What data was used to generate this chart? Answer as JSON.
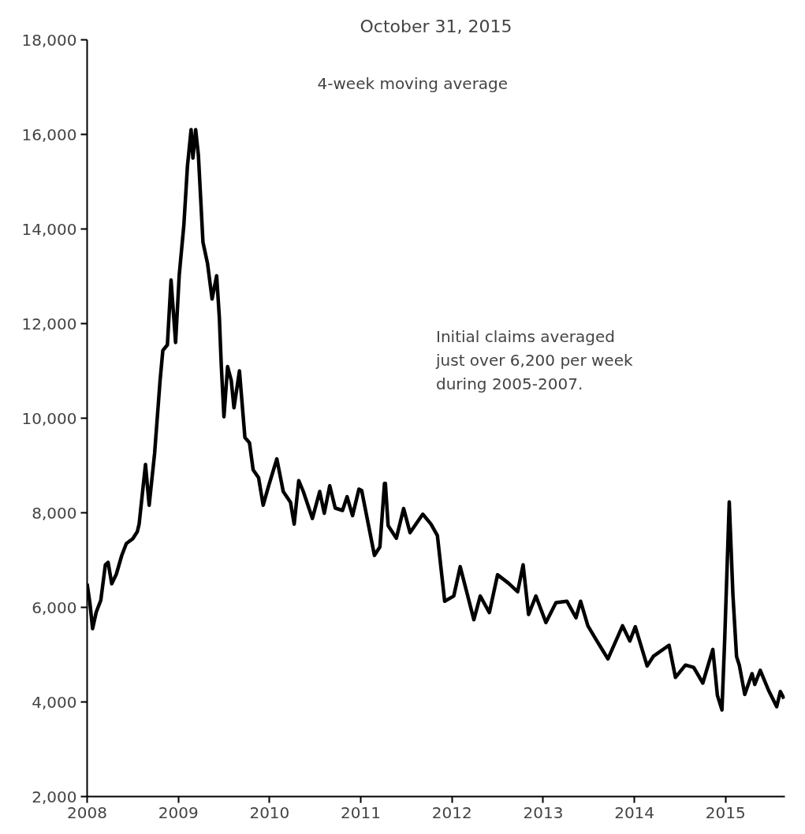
{
  "chart_data": {
    "type": "line",
    "title": "October 31, 2015",
    "x": [
      2008.0,
      2008.03,
      2008.06,
      2008.1,
      2008.15,
      2008.2,
      2008.23,
      2008.27,
      2008.32,
      2008.38,
      2008.43,
      2008.5,
      2008.55,
      2008.57,
      2008.64,
      2008.68,
      2008.74,
      2008.8,
      2008.83,
      2008.88,
      2008.92,
      2008.97,
      2009.01,
      2009.06,
      2009.1,
      2009.14,
      2009.16,
      2009.19,
      2009.22,
      2009.27,
      2009.32,
      2009.37,
      2009.42,
      2009.45,
      2009.47,
      2009.5,
      2009.54,
      2009.58,
      2009.61,
      2009.67,
      2009.73,
      2009.78,
      2009.82,
      2009.88,
      2009.93,
      2009.99,
      2010.08,
      2010.15,
      2010.23,
      2010.27,
      2010.32,
      2010.37,
      2010.47,
      2010.55,
      2010.6,
      2010.66,
      2010.72,
      2010.8,
      2010.85,
      2010.91,
      2010.98,
      2011.01,
      2011.15,
      2011.21,
      2011.26,
      2011.27,
      2011.3,
      2011.39,
      2011.47,
      2011.54,
      2011.68,
      2011.77,
      2011.84,
      2011.92,
      2012.02,
      2012.09,
      2012.24,
      2012.31,
      2012.41,
      2012.5,
      2012.62,
      2012.72,
      2012.78,
      2012.84,
      2012.92,
      2013.03,
      2013.14,
      2013.26,
      2013.36,
      2013.41,
      2013.49,
      2013.58,
      2013.71,
      2013.87,
      2013.95,
      2014.01,
      2014.14,
      2014.21,
      2014.38,
      2014.45,
      2014.56,
      2014.65,
      2014.75,
      2014.86,
      2014.91,
      2014.96,
      2014.99,
      2015.04,
      2015.08,
      2015.12,
      2015.15,
      2015.21,
      2015.29,
      2015.32,
      2015.38,
      2015.47,
      2015.56,
      2015.6,
      2015.64
    ],
    "series": [
      {
        "color": "#000000",
        "values": [
          6500,
          6100,
          5550,
          5900,
          6150,
          6900,
          6950,
          6500,
          6700,
          7100,
          7350,
          7450,
          7600,
          7760,
          9020,
          8160,
          9260,
          10800,
          11430,
          11550,
          12920,
          11600,
          13030,
          14070,
          15330,
          16100,
          15500,
          16100,
          15560,
          13720,
          13270,
          12520,
          13010,
          12120,
          11150,
          10030,
          11090,
          10800,
          10220,
          11000,
          9590,
          9480,
          8910,
          8740,
          8160,
          8570,
          9140,
          8450,
          8220,
          7760,
          8680,
          8450,
          7880,
          8450,
          7990,
          8570,
          8100,
          8050,
          8340,
          7940,
          8500,
          8470,
          7100,
          7280,
          8620,
          8620,
          7730,
          7460,
          8090,
          7580,
          7970,
          7760,
          7520,
          6130,
          6240,
          6860,
          5740,
          6240,
          5890,
          6690,
          6510,
          6330,
          6900,
          5850,
          6240,
          5680,
          6100,
          6130,
          5780,
          6130,
          5610,
          5320,
          4910,
          5610,
          5290,
          5590,
          4760,
          4970,
          5200,
          4520,
          4780,
          4730,
          4400,
          5110,
          4140,
          3830,
          5320,
          8230,
          6270,
          4960,
          4780,
          4160,
          4600,
          4370,
          4670,
          4250,
          3900,
          4220,
          4070
        ]
      }
    ],
    "xlim": [
      2008,
      2015.65
    ],
    "xticks": [
      2008,
      2009,
      2010,
      2011,
      2012,
      2013,
      2014,
      2015
    ],
    "ylim": [
      2000,
      18000
    ],
    "yticks": [
      {
        "value": 2000,
        "label": "2,000"
      },
      {
        "value": 4000,
        "label": "4,000"
      },
      {
        "value": 6000,
        "label": "6,000"
      },
      {
        "value": 8000,
        "label": "8,000"
      },
      {
        "value": 10000,
        "label": "10,000"
      },
      {
        "value": 12000,
        "label": "12,000"
      },
      {
        "value": 14000,
        "label": "14,000"
      },
      {
        "value": 16000,
        "label": "16,000"
      },
      {
        "value": 18000,
        "label": "18,000"
      }
    ],
    "annotations": [
      "4-week moving average",
      "Initial claims averaged just over 6,200 per week during 2005-2007."
    ],
    "grid": false,
    "line_style": "solid"
  }
}
